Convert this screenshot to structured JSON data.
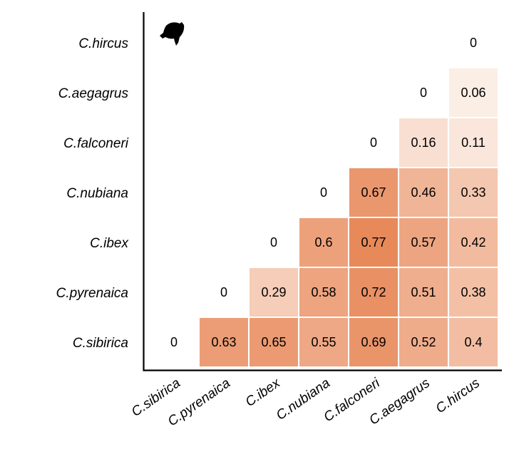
{
  "chart_data": {
    "type": "heatmap",
    "title": "",
    "xlabel": "",
    "ylabel": "",
    "x_categories": [
      "C.sibirica",
      "C.pyrenaica",
      "C.ibex",
      "C.nubiana",
      "C.falconeri",
      "C.aegagrus",
      "C.hircus"
    ],
    "y_categories": [
      "C.hircus",
      "C.aegagrus",
      "C.falconeri",
      "C.nubiana",
      "C.ibex",
      "C.pyrenaica",
      "C.sibirica"
    ],
    "cells": [
      {
        "x": "C.hircus",
        "y": "C.hircus",
        "value": 0
      },
      {
        "x": "C.aegagrus",
        "y": "C.aegagrus",
        "value": 0
      },
      {
        "x": "C.hircus",
        "y": "C.aegagrus",
        "value": 0.06
      },
      {
        "x": "C.falconeri",
        "y": "C.falconeri",
        "value": 0
      },
      {
        "x": "C.aegagrus",
        "y": "C.falconeri",
        "value": 0.16
      },
      {
        "x": "C.hircus",
        "y": "C.falconeri",
        "value": 0.11
      },
      {
        "x": "C.nubiana",
        "y": "C.nubiana",
        "value": 0
      },
      {
        "x": "C.falconeri",
        "y": "C.nubiana",
        "value": 0.67
      },
      {
        "x": "C.aegagrus",
        "y": "C.nubiana",
        "value": 0.46
      },
      {
        "x": "C.hircus",
        "y": "C.nubiana",
        "value": 0.33
      },
      {
        "x": "C.ibex",
        "y": "C.ibex",
        "value": 0
      },
      {
        "x": "C.nubiana",
        "y": "C.ibex",
        "value": 0.6
      },
      {
        "x": "C.falconeri",
        "y": "C.ibex",
        "value": 0.77
      },
      {
        "x": "C.aegagrus",
        "y": "C.ibex",
        "value": 0.57
      },
      {
        "x": "C.hircus",
        "y": "C.ibex",
        "value": 0.42
      },
      {
        "x": "C.pyrenaica",
        "y": "C.pyrenaica",
        "value": 0
      },
      {
        "x": "C.ibex",
        "y": "C.pyrenaica",
        "value": 0.29
      },
      {
        "x": "C.nubiana",
        "y": "C.pyrenaica",
        "value": 0.58
      },
      {
        "x": "C.falconeri",
        "y": "C.pyrenaica",
        "value": 0.72
      },
      {
        "x": "C.aegagrus",
        "y": "C.pyrenaica",
        "value": 0.51
      },
      {
        "x": "C.hircus",
        "y": "C.pyrenaica",
        "value": 0.38
      },
      {
        "x": "C.sibirica",
        "y": "C.sibirica",
        "value": 0
      },
      {
        "x": "C.pyrenaica",
        "y": "C.sibirica",
        "value": 0.63
      },
      {
        "x": "C.ibex",
        "y": "C.sibirica",
        "value": 0.65
      },
      {
        "x": "C.nubiana",
        "y": "C.sibirica",
        "value": 0.55
      },
      {
        "x": "C.falconeri",
        "y": "C.sibirica",
        "value": 0.69
      },
      {
        "x": "C.aegagrus",
        "y": "C.sibirica",
        "value": 0.52
      },
      {
        "x": "C.hircus",
        "y": "C.sibirica",
        "value": 0.4
      }
    ],
    "color_scale": {
      "low": "#fdf6f1",
      "high": "#e8895a",
      "min": 0,
      "max": 0.77
    },
    "grid": false,
    "legend": "none"
  },
  "icons": {
    "corner_icon": "goat-head-silhouette-icon"
  }
}
